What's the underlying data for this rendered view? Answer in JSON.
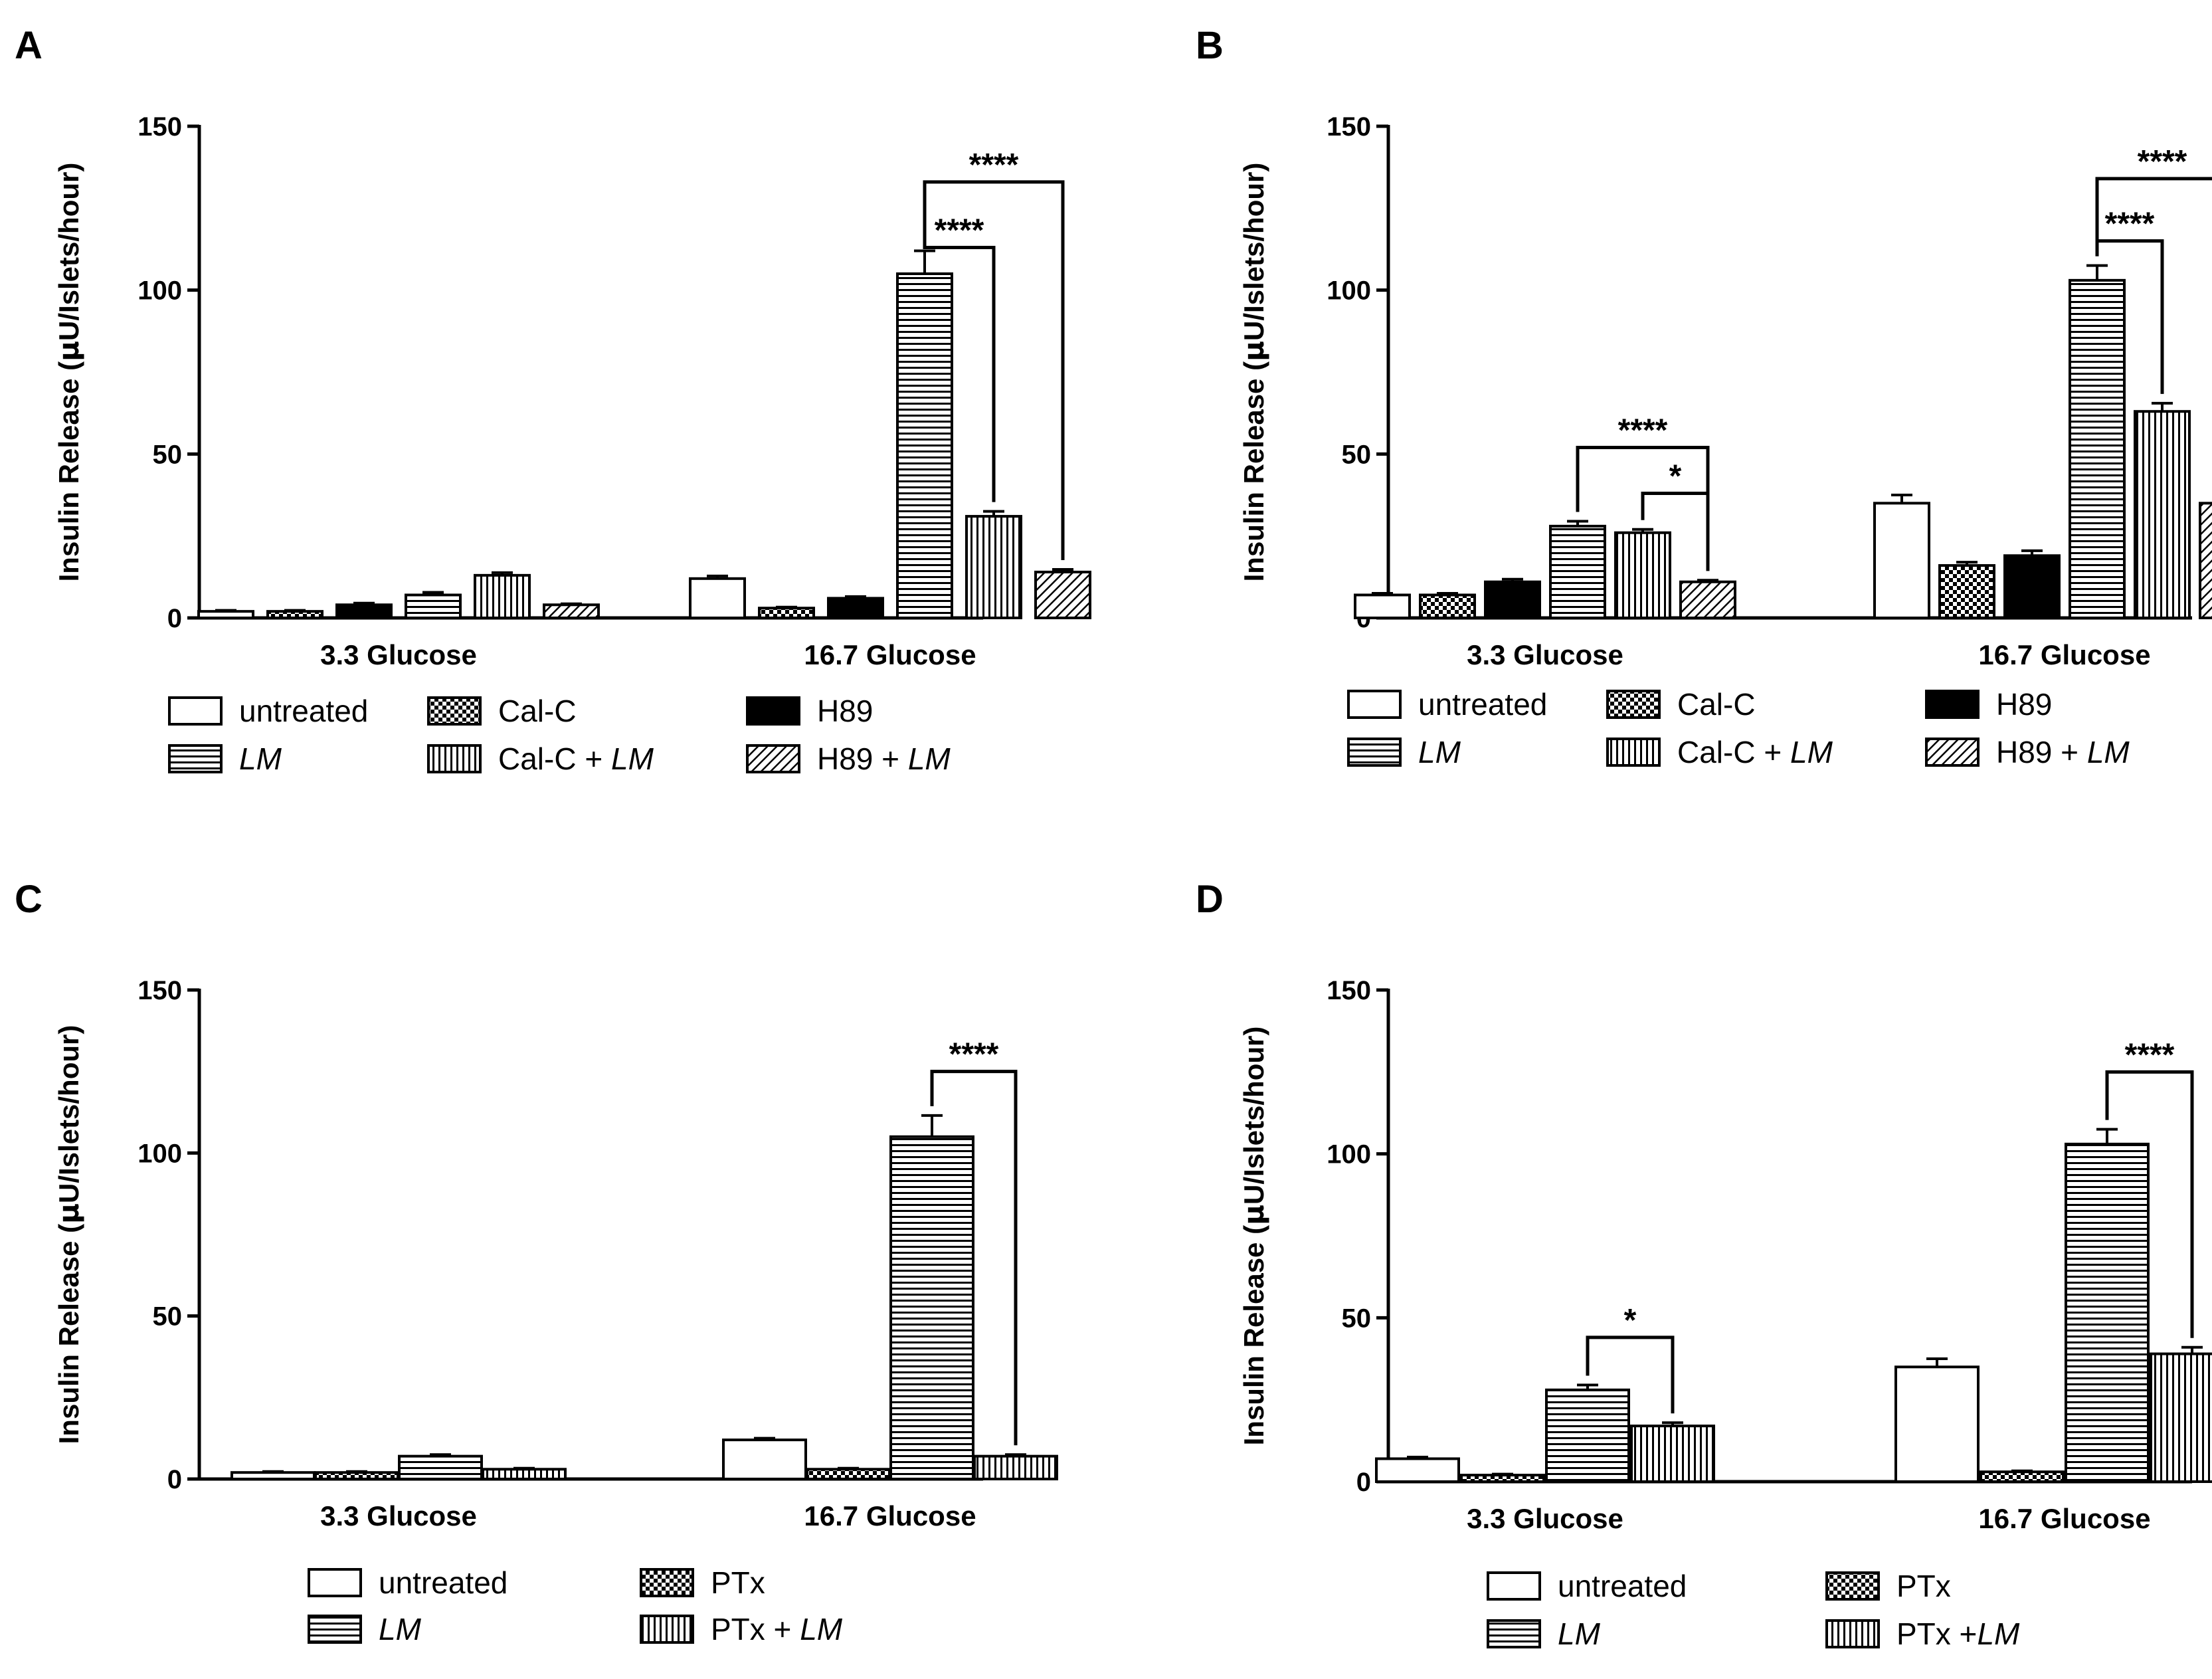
{
  "figure": {
    "pattern_colors": {
      "ink": "#000000",
      "paper": "#ffffff"
    },
    "panels": [
      {
        "label": "A",
        "ylabel_pre": "Insulin Release (",
        "ylabel_mu": "μ",
        "ylabel_post": "U/Islets/hour)",
        "legend": [
          [
            {
              "key": "untreated",
              "text": "untreated",
              "pattern": "white"
            },
            {
              "key": "calc",
              "text": "Cal-C",
              "pattern": "checker"
            },
            {
              "key": "h89",
              "text": "H89",
              "pattern": "black"
            }
          ],
          [
            {
              "key": "lm",
              "text": "",
              "text_italic": "LM",
              "pattern": "hlines"
            },
            {
              "key": "calc_lm",
              "text": "Cal-C + ",
              "text_italic": "LM",
              "pattern": "vlines"
            },
            {
              "key": "h89_lm",
              "text": "H89 + ",
              "text_italic": "LM",
              "pattern": "diag"
            }
          ]
        ]
      },
      {
        "label": "B",
        "ylabel_pre": "Insulin Release (",
        "ylabel_mu": "μ",
        "ylabel_post": "U/Islets/hour)",
        "legend": [
          [
            {
              "key": "untreated",
              "text": "untreated",
              "pattern": "white"
            },
            {
              "key": "calc",
              "text": "Cal-C",
              "pattern": "checker"
            },
            {
              "key": "h89",
              "text": "H89",
              "pattern": "black"
            }
          ],
          [
            {
              "key": "lm",
              "text": "",
              "text_italic": "LM",
              "pattern": "hlines"
            },
            {
              "key": "calc_lm",
              "text": "Cal-C + ",
              "text_italic": "LM",
              "pattern": "vlines"
            },
            {
              "key": "h89_lm",
              "text": "H89 + ",
              "text_italic": "LM",
              "pattern": "diag"
            }
          ]
        ]
      },
      {
        "label": "C",
        "ylabel_pre": "Insulin Release (",
        "ylabel_mu": "μ",
        "ylabel_post": "U/Islets/hour)",
        "legend": [
          [
            {
              "key": "untreated",
              "text": "untreated",
              "pattern": "white"
            },
            {
              "key": "ptx",
              "text": "PTx",
              "pattern": "checker"
            }
          ],
          [
            {
              "key": "lm",
              "text": "",
              "text_italic": "LM",
              "pattern": "hlines"
            },
            {
              "key": "ptx_lm",
              "text": "PTx + ",
              "text_italic": "LM",
              "pattern": "vlines"
            }
          ]
        ]
      },
      {
        "label": "D",
        "ylabel_pre": "Insulin Release (",
        "ylabel_mu": "μ",
        "ylabel_post": "U/Islets/hour)",
        "legend": [
          [
            {
              "key": "untreated",
              "text": "untreated",
              "pattern": "white"
            },
            {
              "key": "ptx",
              "text": "PTx",
              "pattern": "checker"
            }
          ],
          [
            {
              "key": "lm",
              "text": "",
              "text_italic": "LM",
              "pattern": "hlines"
            },
            {
              "key": "ptx_lm",
              "text": "PTx +",
              "text_italic": "LM",
              "pattern": "vlines"
            }
          ]
        ]
      }
    ]
  },
  "chart_data": [
    {
      "panel": "A",
      "type": "bar",
      "ylabel": "Insulin Release (μU/Islets/hour)",
      "ylim": [
        0,
        150
      ],
      "yticks": [
        0,
        50,
        100,
        150
      ],
      "categories": [
        "3.3 Glucose",
        "16.7 Glucose"
      ],
      "series": [
        {
          "name": "untreated",
          "pattern": "white",
          "values": [
            2,
            12
          ],
          "errors": [
            0.3,
            0.8
          ]
        },
        {
          "name": "Cal-C",
          "pattern": "checker",
          "values": [
            2,
            3
          ],
          "errors": [
            0.3,
            0.3
          ]
        },
        {
          "name": "H89",
          "pattern": "black",
          "values": [
            4,
            6
          ],
          "errors": [
            0.5,
            0.5
          ]
        },
        {
          "name": "LM",
          "pattern": "hlines",
          "values": [
            7,
            105
          ],
          "errors": [
            0.8,
            7
          ]
        },
        {
          "name": "Cal-C + LM",
          "pattern": "vlines",
          "values": [
            13,
            31
          ],
          "errors": [
            0.8,
            1.5
          ]
        },
        {
          "name": "H89 + LM",
          "pattern": "diag",
          "values": [
            4,
            14
          ],
          "errors": [
            0.3,
            0.8
          ]
        }
      ],
      "significance": [
        {
          "category": 1,
          "from": 3,
          "to": 4,
          "label": "****",
          "tier": 1,
          "y": 113
        },
        {
          "category": 1,
          "from": 3,
          "to": 5,
          "label": "****",
          "tier": 2,
          "y": 133
        }
      ]
    },
    {
      "panel": "B",
      "type": "bar",
      "ylabel": "Insulin Release (μU/Islets/hour)",
      "ylim": [
        0,
        150
      ],
      "yticks": [
        0,
        50,
        100,
        150
      ],
      "categories": [
        "3.3 Glucose",
        "16.7 Glucose"
      ],
      "series": [
        {
          "name": "untreated",
          "pattern": "white",
          "values": [
            7,
            35
          ],
          "errors": [
            0.5,
            2.5
          ]
        },
        {
          "name": "Cal-C",
          "pattern": "checker",
          "values": [
            7,
            16
          ],
          "errors": [
            0.5,
            1
          ]
        },
        {
          "name": "H89",
          "pattern": "black",
          "values": [
            11,
            19
          ],
          "errors": [
            0.8,
            1.5
          ]
        },
        {
          "name": "LM",
          "pattern": "hlines",
          "values": [
            28,
            103
          ],
          "errors": [
            1.5,
            4.5
          ]
        },
        {
          "name": "Cal-C + LM",
          "pattern": "vlines",
          "values": [
            26,
            63
          ],
          "errors": [
            1,
            2.5
          ]
        },
        {
          "name": "H89 + LM",
          "pattern": "diag",
          "values": [
            11,
            35
          ],
          "errors": [
            0.5,
            1
          ]
        }
      ],
      "significance": [
        {
          "category": 0,
          "from": 4,
          "to": 5,
          "label": "*",
          "tier": 1,
          "y": 38
        },
        {
          "category": 0,
          "from": 3,
          "to": 5,
          "label": "****",
          "tier": 2,
          "y": 52
        },
        {
          "category": 1,
          "from": 3,
          "to": 4,
          "label": "****",
          "tier": 1,
          "y": 115
        },
        {
          "category": 1,
          "from": 3,
          "to": 5,
          "label": "****",
          "tier": 2,
          "y": 134
        }
      ]
    },
    {
      "panel": "C",
      "type": "bar",
      "ylabel": "Insulin Release (μU/Islets/hour)",
      "ylim": [
        0,
        150
      ],
      "yticks": [
        0,
        50,
        100,
        150
      ],
      "categories": [
        "3.3 Glucose",
        "16.7 Glucose"
      ],
      "series": [
        {
          "name": "untreated",
          "pattern": "white",
          "values": [
            2,
            12
          ],
          "errors": [
            0.3,
            0.5
          ]
        },
        {
          "name": "PTx",
          "pattern": "checker",
          "values": [
            2,
            3
          ],
          "errors": [
            0.3,
            0.3
          ]
        },
        {
          "name": "LM",
          "pattern": "hlines",
          "values": [
            7,
            105
          ],
          "errors": [
            0.5,
            6.5
          ]
        },
        {
          "name": "PTx + LM",
          "pattern": "vlines",
          "values": [
            3,
            7
          ],
          "errors": [
            0.3,
            0.5
          ]
        }
      ],
      "significance": [
        {
          "category": 1,
          "from": 2,
          "to": 3,
          "label": "****",
          "tier": 1,
          "y": 125
        }
      ]
    },
    {
      "panel": "D",
      "type": "bar",
      "ylabel": "Insulin Release (μU/Islets/hour)",
      "ylim": [
        0,
        150
      ],
      "yticks": [
        0,
        50,
        100,
        150
      ],
      "categories": [
        "3.3 Glucose",
        "16.7 Glucose"
      ],
      "series": [
        {
          "name": "untreated",
          "pattern": "white",
          "values": [
            7,
            35
          ],
          "errors": [
            0.5,
            2.5
          ]
        },
        {
          "name": "PTx",
          "pattern": "checker",
          "values": [
            2,
            3
          ],
          "errors": [
            0.3,
            0.3
          ]
        },
        {
          "name": "LM",
          "pattern": "hlines",
          "values": [
            28,
            103
          ],
          "errors": [
            1.5,
            4.5
          ]
        },
        {
          "name": "PTx + LM",
          "pattern": "vlines",
          "values": [
            17,
            39
          ],
          "errors": [
            1,
            2
          ]
        }
      ],
      "significance": [
        {
          "category": 0,
          "from": 2,
          "to": 3,
          "label": "*",
          "tier": 1,
          "y": 44
        },
        {
          "category": 1,
          "from": 2,
          "to": 3,
          "label": "****",
          "tier": 1,
          "y": 125
        }
      ]
    }
  ]
}
